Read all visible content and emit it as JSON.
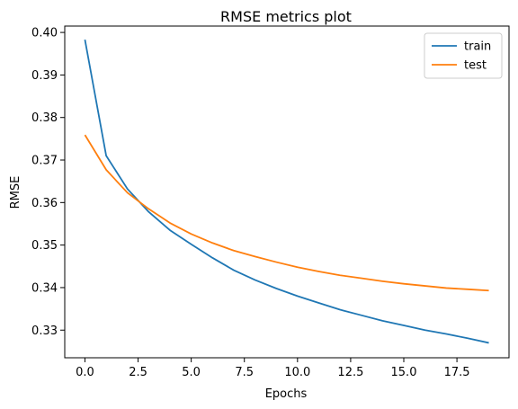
{
  "chart_data": {
    "type": "line",
    "title": "RMSE metrics plot",
    "xlabel": "Epochs",
    "ylabel": "RMSE",
    "xlim": [
      -0.95,
      19.95
    ],
    "ylim": [
      0.3235,
      0.4015
    ],
    "xticks": [
      0.0,
      2.5,
      5.0,
      7.5,
      10.0,
      12.5,
      15.0,
      17.5
    ],
    "xtick_labels": [
      "0.0",
      "2.5",
      "5.0",
      "7.5",
      "10.0",
      "12.5",
      "15.0",
      "17.5"
    ],
    "yticks": [
      0.33,
      0.34,
      0.35,
      0.36,
      0.37,
      0.38,
      0.39,
      0.4
    ],
    "ytick_labels": [
      "0.33",
      "0.34",
      "0.35",
      "0.36",
      "0.37",
      "0.38",
      "0.39",
      "0.40"
    ],
    "grid": false,
    "legend_position": "top-right",
    "x": [
      0,
      1,
      2,
      3,
      4,
      5,
      6,
      7,
      8,
      9,
      10,
      11,
      12,
      13,
      14,
      15,
      16,
      17,
      18,
      19
    ],
    "series": [
      {
        "name": "train",
        "color": "#1f77b4",
        "values": [
          0.3983,
          0.371,
          0.3632,
          0.3578,
          0.3535,
          0.3502,
          0.347,
          0.3441,
          0.3418,
          0.3398,
          0.338,
          0.3364,
          0.3348,
          0.3335,
          0.3322,
          0.3311,
          0.33,
          0.3291,
          0.3281,
          0.327
        ]
      },
      {
        "name": "test",
        "color": "#ff7f0e",
        "values": [
          0.3759,
          0.3677,
          0.3623,
          0.3585,
          0.3552,
          0.3526,
          0.3505,
          0.3487,
          0.3473,
          0.346,
          0.3448,
          0.3438,
          0.3429,
          0.3422,
          0.3415,
          0.3409,
          0.3404,
          0.3399,
          0.3396,
          0.3393
        ]
      }
    ]
  }
}
